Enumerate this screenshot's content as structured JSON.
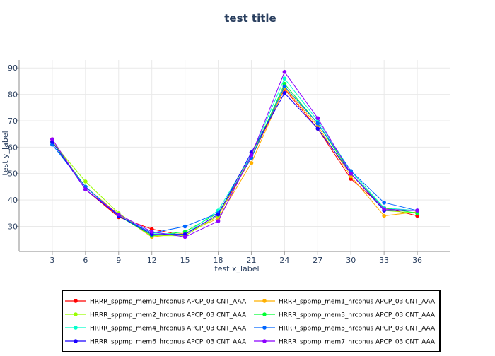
{
  "chart_data": {
    "type": "line",
    "title": "test title",
    "xlabel": "test x_label",
    "ylabel": "test y_label",
    "x": [
      3,
      6,
      9,
      12,
      15,
      18,
      21,
      24,
      27,
      30,
      33,
      36
    ],
    "xlim": [
      0,
      39
    ],
    "ylim": [
      20.5,
      93
    ],
    "xticks": [
      3,
      6,
      9,
      12,
      15,
      18,
      21,
      24,
      27,
      30,
      33,
      36
    ],
    "yticks": [
      30,
      40,
      50,
      60,
      70,
      80,
      90
    ],
    "grid": true,
    "legend_position": "bottom",
    "series": [
      {
        "name": "HRRR_sppmp_mem0_hrconus APCP_03 CNT_AAA",
        "color": "#ff0000",
        "values": [
          63,
          44,
          33.5,
          29,
          26.5,
          34,
          56,
          82,
          67,
          48,
          37,
          34
        ]
      },
      {
        "name": "HRRR_sppmp_mem1_hrconus APCP_03 CNT_AAA",
        "color": "#ffb000",
        "values": [
          62,
          45,
          34.5,
          26,
          27.5,
          33,
          54,
          82.5,
          68,
          49,
          34,
          35.5
        ]
      },
      {
        "name": "HRRR_sppmp_mem2_hrconus APCP_03 CNT_AAA",
        "color": "#99ff00",
        "values": [
          62,
          47,
          35,
          26.5,
          26.5,
          34,
          57,
          83,
          69,
          50,
          36,
          35
        ]
      },
      {
        "name": "HRRR_sppmp_mem3_hrconus APCP_03 CNT_AAA",
        "color": "#00ff33",
        "values": [
          62,
          45,
          34,
          26.5,
          28,
          35,
          56,
          84,
          69,
          50,
          37,
          35
        ]
      },
      {
        "name": "HRRR_sppmp_mem4_hrconus APCP_03 CNT_AAA",
        "color": "#00ffcc",
        "values": [
          61,
          45,
          34,
          27.5,
          27,
          36,
          57,
          86,
          70,
          51,
          37,
          36
        ]
      },
      {
        "name": "HRRR_sppmp_mem5_hrconus APCP_03 CNT_AAA",
        "color": "#0066ff",
        "values": [
          61,
          45,
          34,
          27.5,
          30,
          35,
          56,
          83,
          69,
          51,
          39,
          36
        ]
      },
      {
        "name": "HRRR_sppmp_mem6_hrconus APCP_03 CNT_AAA",
        "color": "#1a00ff",
        "values": [
          62,
          44,
          34,
          27,
          27,
          34.5,
          58,
          80.5,
          67,
          50,
          36,
          36
        ]
      },
      {
        "name": "HRRR_sppmp_mem7_hrconus APCP_03 CNT_AAA",
        "color": "#8c00ff",
        "values": [
          63,
          44,
          34.5,
          28,
          26,
          32,
          57,
          88.5,
          71,
          50,
          36.5,
          36
        ]
      }
    ]
  }
}
